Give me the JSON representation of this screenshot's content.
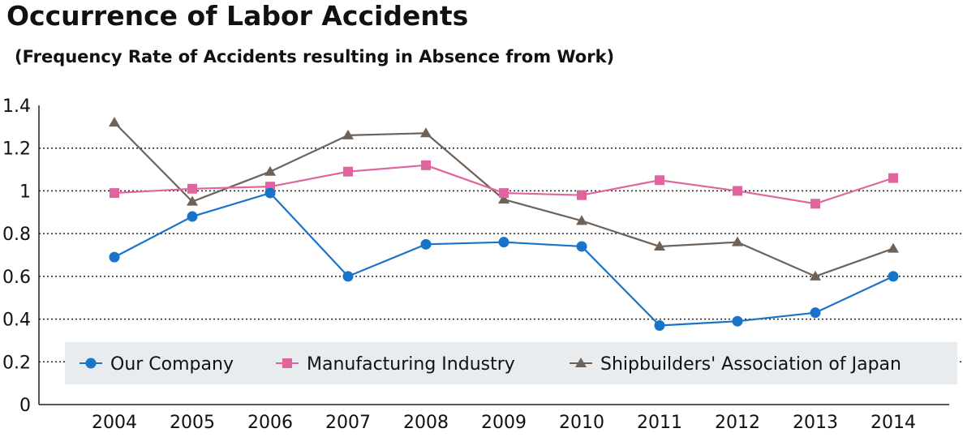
{
  "chart_data": {
    "type": "line",
    "title": "Occurrence of Labor Accidents",
    "subtitle": "(Frequency Rate of Accidents resulting in Absence from Work)",
    "xlabel": "",
    "ylabel": "",
    "categories": [
      "2004",
      "2005",
      "2006",
      "2007",
      "2008",
      "2009",
      "2010",
      "2011",
      "2012",
      "2013",
      "2014"
    ],
    "ylim": [
      0,
      1.4
    ],
    "yticks": [
      "0",
      "0.2",
      "0.4",
      "0.6",
      "0.8",
      "1",
      "1.2",
      "1.4"
    ],
    "yticks_values": [
      0,
      0.2,
      0.4,
      0.6,
      0.8,
      1,
      1.2,
      1.4
    ],
    "grid": true,
    "legend_position": "bottom",
    "series": [
      {
        "name": "Our Company",
        "color": "#1874c8",
        "marker": "circle",
        "values": [
          0.69,
          0.88,
          0.99,
          0.6,
          0.75,
          0.76,
          0.74,
          0.37,
          0.39,
          0.43,
          0.6
        ]
      },
      {
        "name": "Manufacturing Industry",
        "color": "#e0649e",
        "marker": "square",
        "values": [
          0.99,
          1.01,
          1.02,
          1.09,
          1.12,
          0.99,
          0.98,
          1.05,
          1.0,
          0.94,
          1.06
        ]
      },
      {
        "name": "Shipbuilders' Association of Japan",
        "color": "#6e6259",
        "marker": "triangle",
        "values": [
          1.32,
          0.95,
          1.09,
          1.26,
          1.27,
          0.96,
          0.86,
          0.74,
          0.76,
          0.6,
          0.73
        ]
      }
    ]
  }
}
